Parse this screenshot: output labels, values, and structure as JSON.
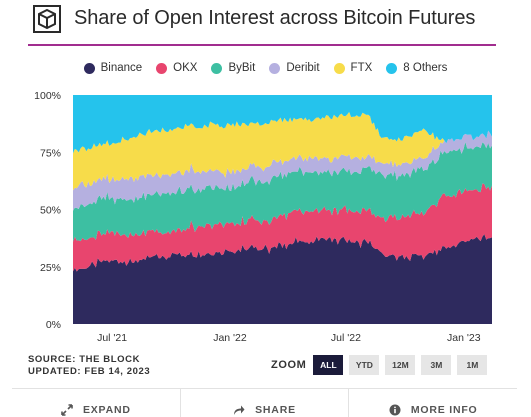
{
  "header": {
    "title": "Share of Open Interest across Bitcoin Futures"
  },
  "colors": {
    "Binance": "#2e2a5e",
    "OKX": "#e8456e",
    "ByBit": "#3dbfa2",
    "Deribit": "#b5b0e0",
    "FTX": "#f7dc4a",
    "8 Others": "#25c3ec",
    "accent": "#a12d8f"
  },
  "chart_data": {
    "type": "area",
    "stacked": true,
    "title": "Share of Open Interest across Bitcoin Futures",
    "x_dates": [
      "2021-05-01",
      "2021-06-01",
      "2021-07-01",
      "2021-08-01",
      "2021-09-01",
      "2021-10-01",
      "2021-11-01",
      "2021-12-01",
      "2022-01-01",
      "2022-02-01",
      "2022-03-01",
      "2022-04-01",
      "2022-05-01",
      "2022-06-01",
      "2022-07-01",
      "2022-08-01",
      "2022-09-01",
      "2022-10-01",
      "2022-11-01",
      "2022-12-01",
      "2023-01-01",
      "2023-02-14"
    ],
    "series": [
      {
        "name": "Binance",
        "values": [
          23,
          26,
          28,
          27,
          29,
          30,
          31,
          31,
          32,
          33,
          33,
          35,
          36,
          37,
          36,
          36,
          30,
          29,
          30,
          33,
          36,
          38
        ]
      },
      {
        "name": "OKX",
        "values": [
          13,
          12,
          12,
          12,
          11,
          10,
          12,
          13,
          12,
          12,
          12,
          13,
          13,
          13,
          14,
          14,
          16,
          18,
          19,
          22,
          22,
          22
        ]
      },
      {
        "name": "ByBit",
        "values": [
          14,
          15,
          15,
          16,
          16,
          17,
          16,
          16,
          15,
          17,
          17,
          18,
          17,
          17,
          17,
          18,
          19,
          18,
          19,
          19,
          19,
          18
        ]
      },
      {
        "name": "Deribit",
        "values": [
          9,
          9,
          9,
          9,
          9,
          8,
          8,
          7,
          7,
          6,
          7,
          6,
          6,
          5,
          6,
          5,
          5,
          5,
          5,
          5,
          5,
          5
        ]
      },
      {
        "name": "FTX",
        "values": [
          16,
          16,
          15,
          18,
          19,
          20,
          19,
          20,
          21,
          19,
          19,
          17,
          17,
          18,
          18,
          19,
          10,
          11,
          12,
          0,
          0,
          0
        ]
      },
      {
        "name": "8 Others",
        "values": [
          25,
          22,
          21,
          18,
          16,
          15,
          14,
          13,
          13,
          13,
          12,
          11,
          11,
          10,
          9,
          8,
          20,
          19,
          15,
          21,
          18,
          17
        ]
      }
    ],
    "x_ticks": [
      {
        "date": "2021-07-01",
        "label": "Jul '21"
      },
      {
        "date": "2022-01-01",
        "label": "Jan '22"
      },
      {
        "date": "2022-07-01",
        "label": "Jul '22"
      },
      {
        "date": "2023-01-01",
        "label": "Jan '23"
      }
    ],
    "y_ticks": [
      {
        "value": 0,
        "label": "0%"
      },
      {
        "value": 25,
        "label": "25%"
      },
      {
        "value": 50,
        "label": "50%"
      },
      {
        "value": 75,
        "label": "75%"
      },
      {
        "value": 100,
        "label": "100%"
      }
    ],
    "ylim": [
      0,
      100
    ],
    "xlim": [
      "2021-05-01",
      "2023-02-14"
    ],
    "legend": "top",
    "grid": false
  },
  "source": {
    "line1": "SOURCE: THE BLOCK",
    "line2": "UPDATED: FEB 14, 2023"
  },
  "zoom": {
    "label": "ZOOM",
    "options": [
      "ALL",
      "YTD",
      "12M",
      "3M",
      "1M"
    ],
    "selected": "ALL"
  },
  "footer": {
    "expand": "EXPAND",
    "share": "SHARE",
    "more_info": "MORE INFO"
  },
  "icons": {
    "logo": "cube-logo-icon",
    "expand": "expand-arrows-icon",
    "share": "share-arrow-icon",
    "info": "info-icon"
  }
}
